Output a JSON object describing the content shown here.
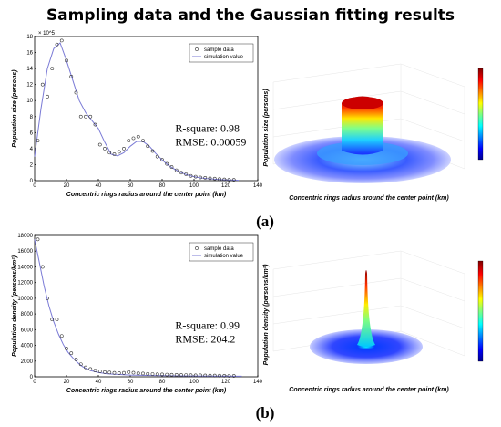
{
  "title": "Sampling data and the Gaussian fitting results",
  "panels": {
    "a": "(a)",
    "b": "(b)"
  },
  "chart_data": [
    {
      "id": "a-2d",
      "type": "scatter",
      "xlabel": "Concentric rings radius around the center point (km)",
      "ylabel": "Population size (persons)",
      "y_exponent": "× 10^5",
      "xlim": [
        0,
        140
      ],
      "ylim": [
        0,
        18
      ],
      "xticks": [
        0,
        20,
        40,
        60,
        80,
        100,
        120,
        140
      ],
      "yticks": [
        0,
        2,
        4,
        6,
        8,
        10,
        12,
        14,
        16,
        18
      ],
      "legend": [
        "sample data",
        "simulation value"
      ],
      "legend_position": "top-right",
      "stats": [
        "R-square: 0.98",
        "RMSE: 0.00059"
      ],
      "series": [
        {
          "name": "sample data",
          "x": [
            2,
            5,
            8,
            11,
            14,
            17,
            20,
            23,
            26,
            29,
            32,
            35,
            38,
            41,
            44,
            47,
            50,
            53,
            56,
            59,
            62,
            65,
            68,
            71,
            74,
            77,
            80,
            83,
            86,
            89,
            92,
            95,
            98,
            101,
            104,
            107,
            110,
            113,
            116,
            119,
            122,
            125
          ],
          "y": [
            5,
            12,
            10.5,
            14,
            17,
            17.5,
            15,
            13,
            11,
            8,
            8,
            8,
            7,
            4.5,
            4,
            3.5,
            3.3,
            3.6,
            4,
            5,
            5.3,
            5.5,
            5,
            4.3,
            3.7,
            3,
            2.6,
            2.1,
            1.7,
            1.3,
            1,
            0.8,
            0.6,
            0.5,
            0.4,
            0.35,
            0.3,
            0.25,
            0.2,
            0.15,
            0.1,
            0.1
          ]
        },
        {
          "name": "simulation value",
          "x": [
            0,
            4,
            8,
            12,
            16,
            20,
            24,
            28,
            32,
            36,
            40,
            44,
            48,
            52,
            56,
            60,
            64,
            68,
            72,
            76,
            80,
            84,
            88,
            92,
            96,
            100,
            104,
            108,
            112,
            116,
            120,
            124,
            128
          ],
          "y": [
            3,
            9,
            14,
            16.5,
            17.2,
            15,
            12.5,
            10,
            8.5,
            7.5,
            6.5,
            4.8,
            3.3,
            3.1,
            3.5,
            4.3,
            4.9,
            4.9,
            4.3,
            3.4,
            2.6,
            1.9,
            1.4,
            1,
            0.7,
            0.5,
            0.35,
            0.25,
            0.2,
            0.15,
            0.1,
            0.08,
            0.05
          ]
        }
      ]
    },
    {
      "id": "b-2d",
      "type": "scatter",
      "xlabel": "Concentric rings radius around the center point (km)",
      "ylabel": "Population density (persons/km²)",
      "xlim": [
        0,
        140
      ],
      "ylim": [
        0,
        18000
      ],
      "xticks": [
        0,
        20,
        40,
        60,
        80,
        100,
        120,
        140
      ],
      "yticks": [
        0,
        2000,
        4000,
        6000,
        8000,
        10000,
        12000,
        14000,
        16000,
        18000
      ],
      "legend": [
        "sample data",
        "simulation value"
      ],
      "legend_position": "top-right",
      "stats": [
        "R-square: 0.99",
        "RMSE: 204.2"
      ],
      "series": [
        {
          "name": "sample data",
          "x": [
            2,
            5,
            8,
            11,
            14,
            17,
            20,
            23,
            26,
            29,
            32,
            35,
            38,
            41,
            44,
            47,
            50,
            53,
            56,
            59,
            62,
            65,
            68,
            71,
            74,
            77,
            80,
            83,
            86,
            89,
            92,
            95,
            98,
            101,
            104,
            107,
            110,
            113,
            116,
            119,
            122,
            125
          ],
          "y": [
            17500,
            14000,
            10000,
            7300,
            7300,
            5200,
            3600,
            3000,
            2200,
            1600,
            1200,
            1000,
            800,
            700,
            600,
            550,
            500,
            480,
            500,
            600,
            520,
            450,
            420,
            380,
            350,
            320,
            300,
            280,
            260,
            240,
            230,
            220,
            200,
            190,
            180,
            170,
            160,
            150,
            140,
            130,
            120,
            110
          ]
        },
        {
          "name": "simulation value",
          "x": [
            0,
            3,
            6,
            9,
            12,
            15,
            18,
            21,
            24,
            27,
            30,
            35,
            40,
            45,
            50,
            60,
            70,
            80,
            90,
            100,
            110,
            120,
            130
          ],
          "y": [
            17500,
            14500,
            11500,
            9000,
            7000,
            5400,
            4100,
            3100,
            2400,
            1800,
            1300,
            800,
            550,
            400,
            320,
            220,
            170,
            140,
            120,
            100,
            90,
            80,
            70
          ]
        }
      ]
    },
    {
      "id": "a-3d",
      "type": "surface",
      "ylabel": "Population size (persons)",
      "xlabel": "Concentric rings radius around the center point (km)"
    },
    {
      "id": "b-3d",
      "type": "surface",
      "ylabel": "Population density (persons/km²)",
      "xlabel": "Concentric rings radius around the center point (km)"
    }
  ]
}
